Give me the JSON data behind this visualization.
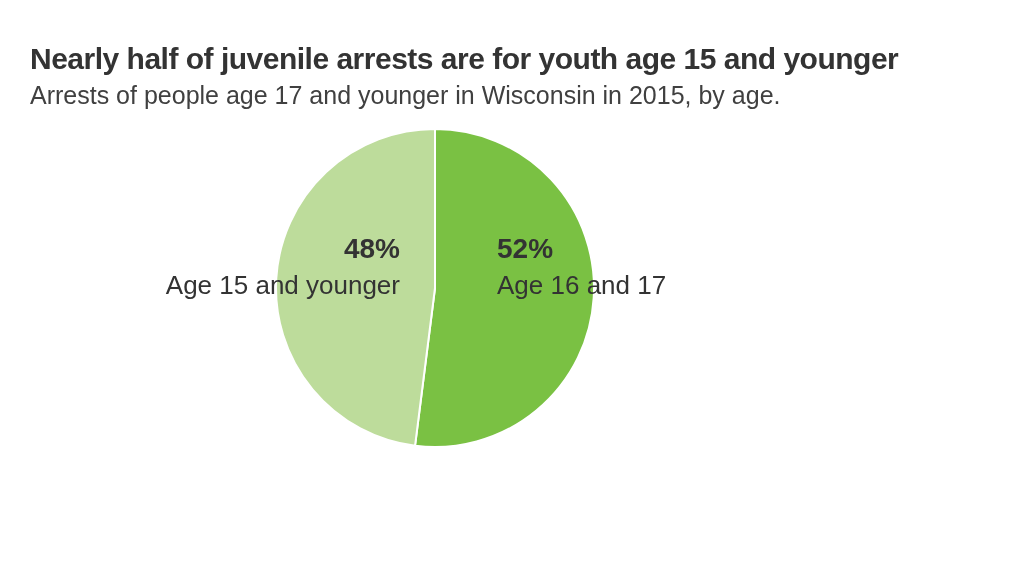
{
  "chart_data": {
    "type": "pie",
    "title": "Nearly half of juvenile arrests are for youth age 15 and younger",
    "subtitle": "Arrests of people age 17 and younger in Wisconsin in 2015, by age.",
    "categories": [
      "Age 16 and 17",
      "Age 15 and younger"
    ],
    "values": [
      52,
      48
    ],
    "colors": [
      "#7ac143",
      "#bddc9b"
    ],
    "value_labels": [
      "52%",
      "48%"
    ],
    "legend": false
  }
}
